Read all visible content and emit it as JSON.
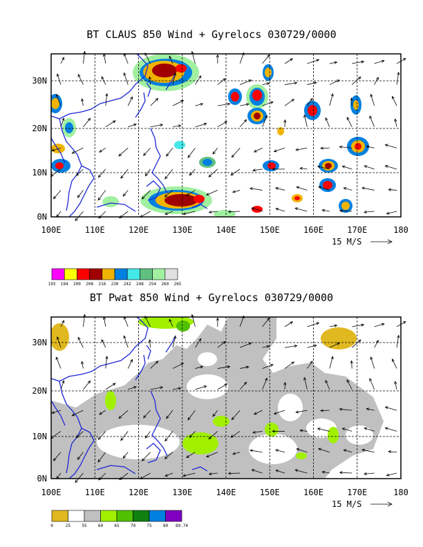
{
  "panels": [
    {
      "id": "top",
      "title": "BT CLAUS 850 Wind + Gyrelocs 030729/0000",
      "x_ticks": [
        "100E",
        "110E",
        "120E",
        "130E",
        "140E",
        "150E",
        "160E",
        "170E",
        "180"
      ],
      "y_ticks": [
        "0N",
        "10N",
        "20N",
        "30N"
      ],
      "vector_ref": "15 M/S",
      "colorbar": {
        "labels": [
          "193",
          "194",
          "200",
          "208",
          "216",
          "230",
          "242",
          "248",
          "254",
          "260",
          "265"
        ],
        "colors": [
          "#ff00ff",
          "#ffff00",
          "#ff0000",
          "#a00000",
          "#f0b400",
          "#0080e0",
          "#44e8e8",
          "#60c080",
          "#a0f0a0",
          "#e0e0e0"
        ]
      }
    },
    {
      "id": "bottom",
      "title": "BT Pwat 850 Wind + Gyrelocs 030729/0000",
      "x_ticks": [
        "100E",
        "110E",
        "120E",
        "130E",
        "140E",
        "150E",
        "160E",
        "170E",
        "180"
      ],
      "y_ticks": [
        "0N",
        "10N",
        "20N",
        "30N"
      ],
      "vector_ref": "15 M/S",
      "colorbar": {
        "labels": [
          "0",
          "25",
          "55",
          "60",
          "65",
          "70",
          "75",
          "80",
          "89.74"
        ],
        "colors": [
          "#e0b820",
          "#ffffff",
          "#c0c0c0",
          "#a0f000",
          "#50c000",
          "#108010",
          "#0080e0",
          "#8000c0"
        ]
      }
    }
  ]
}
